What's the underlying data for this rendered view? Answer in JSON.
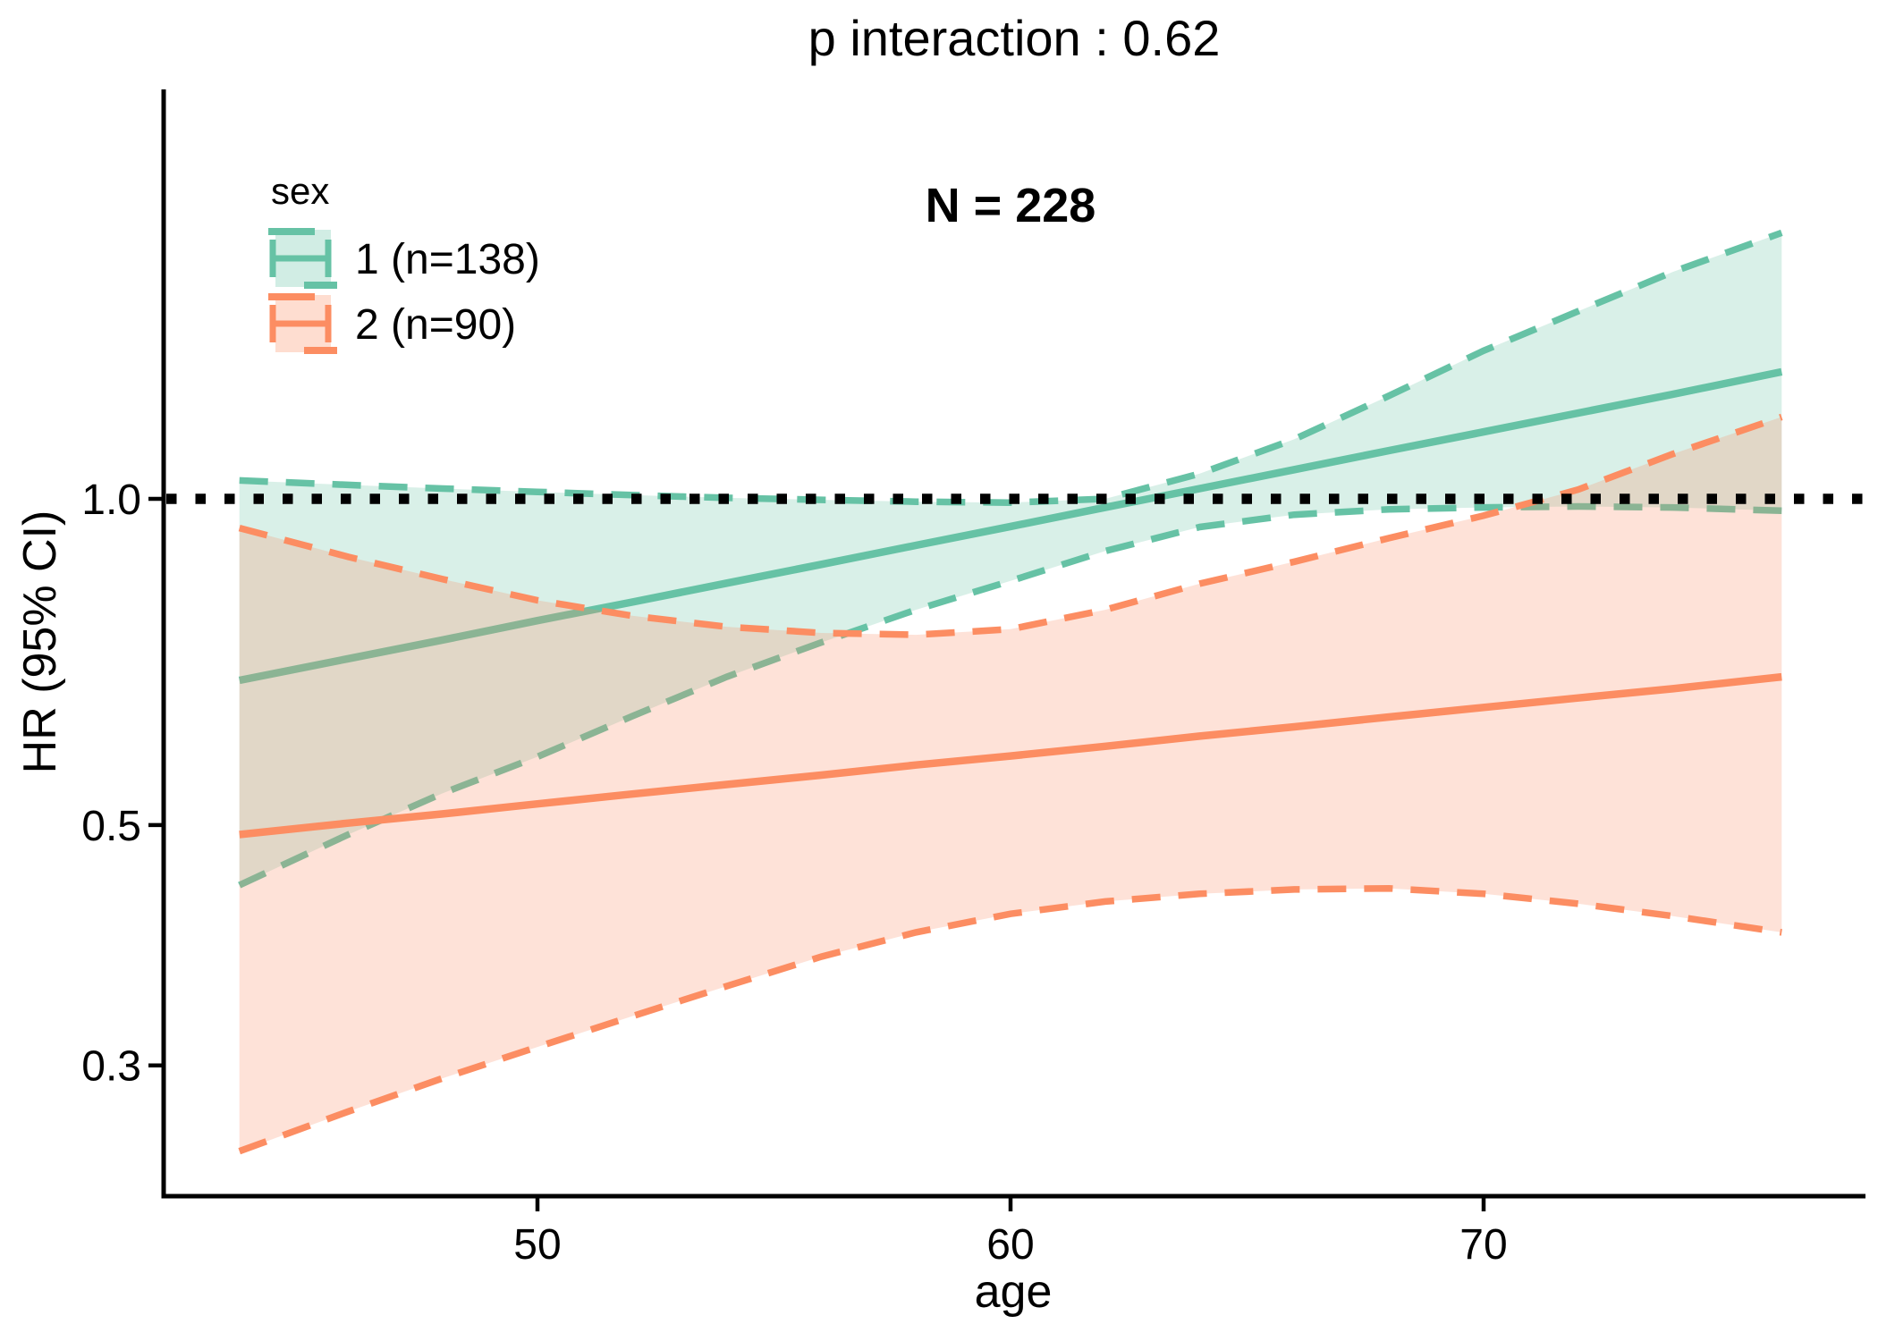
{
  "chart_data": {
    "type": "line",
    "title": "p interaction : 0.62",
    "annotation": "N = 228",
    "xlabel": "age",
    "ylabel": "HR (95% CI)",
    "y_scale": "log10",
    "grid": "off",
    "x_range": [
      43.7,
      76.3
    ],
    "x_ticks": [
      {
        "value": 50,
        "label": "50"
      },
      {
        "value": 60,
        "label": "60"
      },
      {
        "value": 70,
        "label": "70"
      }
    ],
    "y_ticks": [
      {
        "value": 1.0,
        "label": "1.0"
      },
      {
        "value": 0.5,
        "label": "0.5"
      },
      {
        "value": 0.3,
        "label": "0.3"
      }
    ],
    "reference_line": 1.0,
    "legend": {
      "title": "sex",
      "position": "top-left-inside",
      "items": [
        {
          "label": "1 (n=138)",
          "color": "#66C2A5",
          "fill": "rgba(102,194,165,0.3)"
        },
        {
          "label": "2 (n=90)",
          "color": "#FC8D62",
          "fill": "rgba(252,141,98,0.3)"
        }
      ]
    },
    "x": [
      43.7,
      46,
      48,
      50,
      52,
      54,
      56,
      58,
      60,
      62,
      64,
      66,
      68,
      70,
      72,
      74,
      76.3
    ],
    "series": [
      {
        "name": "1 (n=138)",
        "sex": "1",
        "n": 138,
        "color": "#66C2A5",
        "fill": "rgba(102,194,165,0.25)",
        "hr": [
          0.68,
          0.712,
          0.741,
          0.772,
          0.803,
          0.836,
          0.87,
          0.906,
          0.943,
          0.982,
          1.022,
          1.064,
          1.108,
          1.153,
          1.2,
          1.249,
          1.31
        ],
        "ci_upper": [
          1.04,
          1.03,
          1.022,
          1.015,
          1.008,
          1.002,
          0.998,
          0.994,
          0.992,
          1.0,
          1.055,
          1.135,
          1.245,
          1.37,
          1.49,
          1.62,
          1.76
        ],
        "ci_lower": [
          0.44,
          0.49,
          0.535,
          0.578,
          0.63,
          0.685,
          0.737,
          0.79,
          0.84,
          0.895,
          0.942,
          0.967,
          0.978,
          0.982,
          0.984,
          0.982,
          0.975
        ]
      },
      {
        "name": "2 (n=90)",
        "sex": "2",
        "n": 90,
        "color": "#FC8D62",
        "fill": "rgba(252,141,98,0.25)",
        "hr": [
          0.49,
          0.502,
          0.512,
          0.523,
          0.534,
          0.545,
          0.556,
          0.568,
          0.579,
          0.591,
          0.604,
          0.616,
          0.629,
          0.642,
          0.655,
          0.668,
          0.685
        ],
        "ci_upper": [
          0.94,
          0.884,
          0.843,
          0.806,
          0.78,
          0.762,
          0.752,
          0.749,
          0.758,
          0.79,
          0.835,
          0.875,
          0.92,
          0.965,
          1.02,
          1.1,
          1.19
        ],
        "ci_lower": [
          0.25,
          0.272,
          0.292,
          0.312,
          0.333,
          0.355,
          0.378,
          0.398,
          0.414,
          0.425,
          0.432,
          0.436,
          0.437,
          0.432,
          0.423,
          0.412,
          0.398
        ]
      }
    ],
    "colors": {
      "reference_line": "#000000",
      "axis": "#000000",
      "text": "#000000",
      "background": "#ffffff"
    }
  }
}
